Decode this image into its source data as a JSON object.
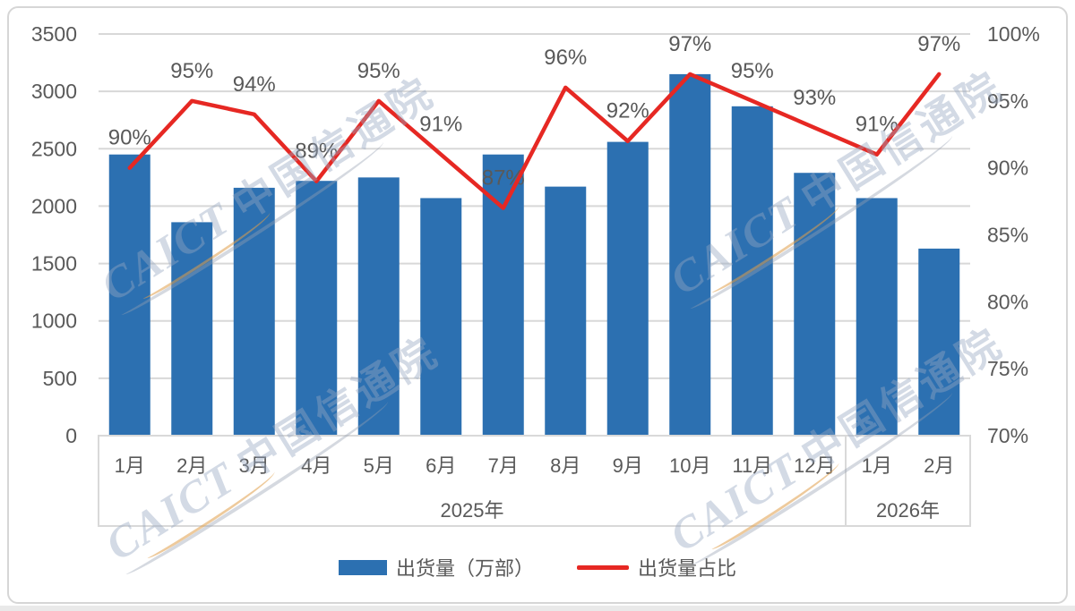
{
  "watermark": {
    "text_latin": "CAICT",
    "text_cn": "中国信通院"
  },
  "legend": {
    "bar_label": "出货量（万部）",
    "line_label": "出货量占比"
  },
  "colors": {
    "bar": "#2C70B1",
    "line": "#E62823",
    "text": "#595959",
    "grid": "#D8D8D8",
    "axis_box": "#D9D9D9"
  },
  "chart_data": {
    "type": "bar+line combo",
    "categories": [
      "1月",
      "2月",
      "3月",
      "4月",
      "5月",
      "6月",
      "7月",
      "8月",
      "9月",
      "10月",
      "11月",
      "12月",
      "1月",
      "2月"
    ],
    "category_groups": [
      {
        "label": "2025年",
        "span": 12
      },
      {
        "label": "2026年",
        "span": 2
      }
    ],
    "series": [
      {
        "name": "出货量（万部）",
        "type": "bar",
        "axis": "left",
        "values": [
          2450,
          1860,
          2160,
          2220,
          2250,
          2070,
          2450,
          2170,
          2560,
          3150,
          2870,
          2290,
          2070,
          1630
        ]
      },
      {
        "name": "出货量占比",
        "type": "line",
        "axis": "right",
        "values_percent": [
          90,
          95,
          94,
          89,
          95,
          91,
          87,
          96,
          92,
          97,
          95,
          93,
          91,
          97
        ],
        "data_labels": [
          "90%",
          "95%",
          "94%",
          "89%",
          "95%",
          "91%",
          "87%",
          "96%",
          "92%",
          "97%",
          "95%",
          "93%",
          "91%",
          "97%"
        ]
      }
    ],
    "left_axis": {
      "min": 0,
      "max": 3500,
      "step": 500,
      "ticks": [
        "0",
        "500",
        "1000",
        "1500",
        "2000",
        "2500",
        "3000",
        "3500"
      ]
    },
    "right_axis": {
      "min": 70,
      "max": 100,
      "step": 5,
      "ticks": [
        "70%",
        "75%",
        "80%",
        "85%",
        "90%",
        "95%",
        "100%"
      ]
    },
    "grid": true,
    "legend_position": "bottom"
  }
}
